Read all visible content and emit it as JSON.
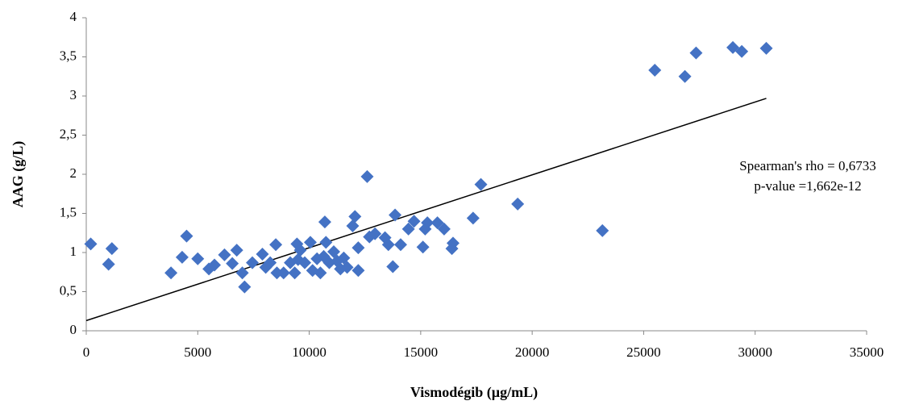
{
  "chart_data": {
    "type": "scatter",
    "x_label": "Vismodégib (µg/mL)",
    "y_label": "AAG (g/L)",
    "annotations": [
      "Spearman's rho = 0,6733",
      "p-value =1,662e-12"
    ],
    "xlim": [
      0,
      35000
    ],
    "xticks": [
      0,
      5000,
      10000,
      15000,
      20000,
      25000,
      30000,
      35000
    ],
    "ylim": [
      0,
      4
    ],
    "yticks": [
      0,
      {
        "value": 0.5,
        "label": "0,5"
      },
      1,
      {
        "value": 1.5,
        "label": "1,5"
      },
      2,
      {
        "value": 2.5,
        "label": "2,5"
      },
      3,
      {
        "value": 3.5,
        "label": "3,5"
      },
      4
    ],
    "color": "#4472c4",
    "x": [
      200,
      1000,
      1150,
      3800,
      4300,
      4500,
      5000,
      5500,
      5750,
      6200,
      6550,
      6750,
      7000,
      7100,
      7450,
      7900,
      8050,
      8250,
      8500,
      8550,
      8850,
      9150,
      9350,
      9450,
      9500,
      9600,
      9800,
      10050,
      10150,
      10350,
      10500,
      10650,
      10700,
      10750,
      10900,
      11100,
      11250,
      11400,
      11550,
      11700,
      12050,
      11950,
      12200,
      12200,
      12600,
      12700,
      12950,
      13400,
      13550,
      13750,
      13850,
      14100,
      14450,
      14700,
      15100,
      15200,
      15300,
      15750,
      16050,
      16400,
      16450,
      17350,
      17700,
      19350,
      23150,
      25500,
      26850,
      27350,
      29000,
      29400,
      30500
    ],
    "y": [
      1.11,
      0.85,
      1.05,
      0.74,
      0.94,
      1.21,
      0.92,
      0.79,
      0.84,
      0.97,
      0.86,
      1.03,
      0.74,
      0.56,
      0.87,
      0.98,
      0.81,
      0.87,
      1.1,
      0.74,
      0.74,
      0.87,
      0.74,
      1.11,
      0.91,
      1.03,
      0.87,
      1.13,
      0.77,
      0.92,
      0.74,
      0.95,
      1.39,
      1.13,
      0.87,
      1.01,
      0.89,
      0.79,
      0.93,
      0.81,
      1.46,
      1.34,
      1.06,
      0.77,
      1.97,
      1.2,
      1.24,
      1.19,
      1.1,
      0.82,
      1.48,
      1.1,
      1.3,
      1.4,
      1.07,
      1.3,
      1.38,
      1.38,
      1.3,
      1.05,
      1.12,
      1.44,
      1.87,
      1.62,
      1.28,
      3.33,
      3.25,
      3.55,
      3.62,
      3.57,
      3.61
    ],
    "trendline": {
      "x": [
        0,
        30500
      ],
      "y": [
        0.13,
        2.97
      ],
      "color": "#000000"
    }
  }
}
